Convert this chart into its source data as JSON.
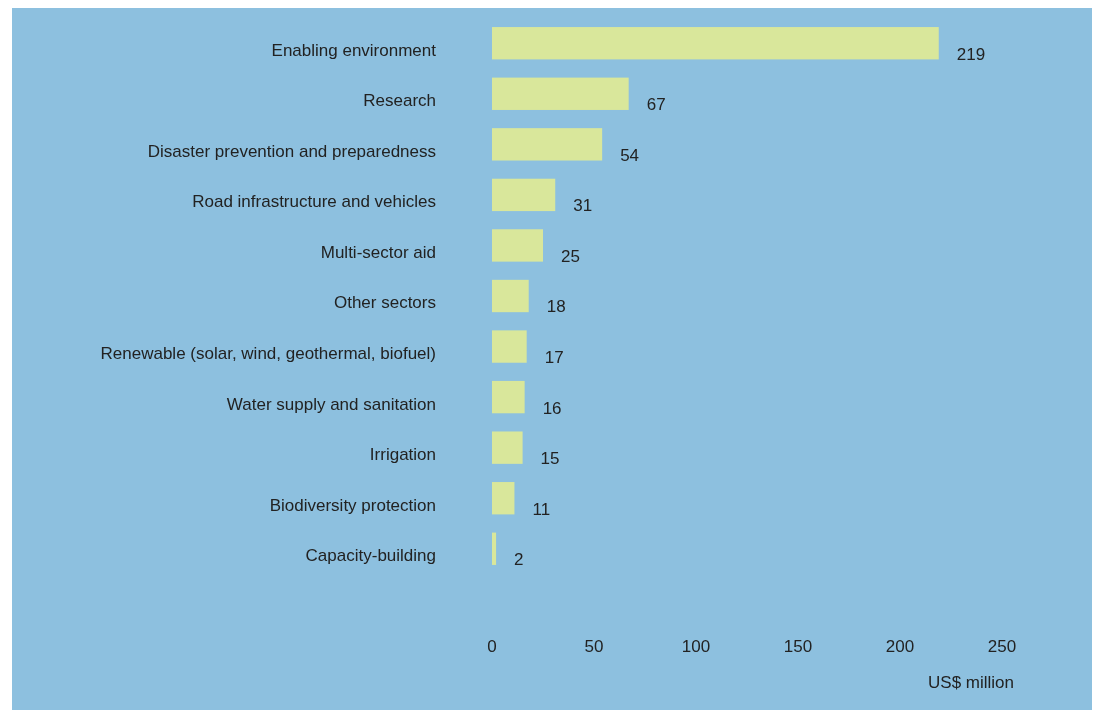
{
  "chart_data": {
    "type": "bar",
    "orientation": "horizontal",
    "categories": [
      "Enabling environment",
      "Research",
      "Disaster prevention and preparedness",
      "Road infrastructure and vehicles",
      "Multi-sector aid",
      "Other sectors",
      "Renewable (solar, wind, geothermal, biofuel)",
      "Water supply and sanitation",
      "Irrigation",
      "Biodiversity protection",
      "Capacity-building"
    ],
    "values": [
      219,
      67,
      54,
      31,
      25,
      18,
      17,
      16,
      15,
      11,
      2
    ],
    "color": "#d9e79b",
    "xlim": [
      0,
      250
    ],
    "xticks": [
      0,
      50,
      100,
      150,
      200,
      250
    ],
    "xlabel": "US$ million",
    "data_labels": true,
    "grid": false
  }
}
